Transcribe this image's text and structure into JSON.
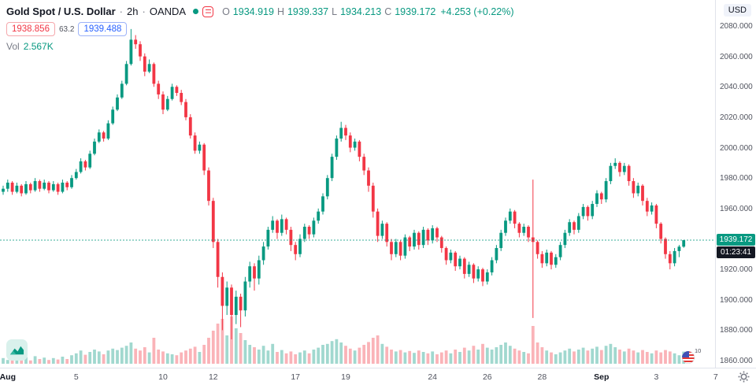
{
  "header": {
    "symbol_title": "Gold Spot / U.S. Dollar",
    "separator": "·",
    "interval": "2h",
    "exchange": "OANDA",
    "ohlc": [
      {
        "k": "O",
        "v": "1934.919"
      },
      {
        "k": "H",
        "v": "1939.337"
      },
      {
        "k": "L",
        "v": "1934.213"
      },
      {
        "k": "C",
        "v": "1939.172"
      }
    ],
    "change": "+4.253 (+0.22%)",
    "quote": {
      "sell": "1938.856",
      "spread": "63.2",
      "buy": "1939.488"
    },
    "volume_label": "Vol",
    "volume_value": "2.567K"
  },
  "price_axis": {
    "currency_button": "USD",
    "ticks": [
      "2080.000",
      "2060.000",
      "2040.000",
      "2020.000",
      "2000.000",
      "1980.000",
      "1960.000",
      "1940.000",
      "1920.000",
      "1900.000",
      "1880.000",
      "1860.000"
    ],
    "last_price": "1939.172",
    "countdown": "01:23:41"
  },
  "time_axis": {
    "ticks": [
      {
        "label": "Aug",
        "i": 1,
        "major": true
      },
      {
        "label": "5",
        "i": 16
      },
      {
        "label": "10",
        "i": 35
      },
      {
        "label": "12",
        "i": 46
      },
      {
        "label": "17",
        "i": 64
      },
      {
        "label": "19",
        "i": 75
      },
      {
        "label": "24",
        "i": 94
      },
      {
        "label": "26",
        "i": 106
      },
      {
        "label": "28",
        "i": 118
      },
      {
        "label": "Sep",
        "i": 131,
        "major": true
      },
      {
        "label": "3",
        "i": 143
      },
      {
        "label": "7",
        "i": 156
      }
    ]
  },
  "footer": {
    "flag_badge": "10"
  },
  "colors": {
    "up": "#089981",
    "down": "#f23645",
    "sell": "#f23645",
    "buy": "#2962ff",
    "badge_bg": "#089981",
    "countdown_bg": "#131722",
    "axis_text": "#50535e",
    "muted": "#787b86",
    "text": "#131722",
    "border": "#e0e3eb"
  },
  "chart_data": {
    "type": "candlestick",
    "title": "Gold Spot / U.S. Dollar, 2h, OANDA",
    "ylabel": "Price (USD)",
    "ylim": [
      1860,
      2080
    ],
    "y_tick_step": 20,
    "last_close": 1939.172,
    "candles": [
      [
        1971,
        1975,
        1969,
        1973
      ],
      [
        1973,
        1979,
        1971,
        1977
      ],
      [
        1977,
        1978,
        1969,
        1971
      ],
      [
        1971,
        1977,
        1970,
        1975
      ],
      [
        1975,
        1976,
        1968,
        1970
      ],
      [
        1970,
        1978,
        1969,
        1976
      ],
      [
        1976,
        1977,
        1970,
        1972
      ],
      [
        1972,
        1980,
        1971,
        1978
      ],
      [
        1978,
        1979,
        1971,
        1973
      ],
      [
        1973,
        1979,
        1972,
        1977
      ],
      [
        1977,
        1978,
        1970,
        1972
      ],
      [
        1972,
        1978,
        1971,
        1976
      ],
      [
        1976,
        1977,
        1969,
        1971
      ],
      [
        1971,
        1979,
        1970,
        1977
      ],
      [
        1977,
        1978,
        1972,
        1974
      ],
      [
        1974,
        1982,
        1973,
        1980
      ],
      [
        1980,
        1986,
        1979,
        1984
      ],
      [
        1984,
        1993,
        1983,
        1991
      ],
      [
        1991,
        1992,
        1985,
        1987
      ],
      [
        1987,
        1998,
        1986,
        1996
      ],
      [
        1996,
        2006,
        1995,
        2004
      ],
      [
        2004,
        2012,
        2003,
        2010
      ],
      [
        2010,
        2011,
        2004,
        2006
      ],
      [
        2006,
        2018,
        2005,
        2016
      ],
      [
        2016,
        2027,
        2015,
        2025
      ],
      [
        2025,
        2035,
        2024,
        2033
      ],
      [
        2033,
        2044,
        2032,
        2042
      ],
      [
        2042,
        2057,
        2041,
        2055
      ],
      [
        2055,
        2078,
        2054,
        2071
      ],
      [
        2071,
        2074,
        2065,
        2068
      ],
      [
        2068,
        2070,
        2057,
        2060
      ],
      [
        2060,
        2062,
        2047,
        2050
      ],
      [
        2050,
        2058,
        2049,
        2055
      ],
      [
        2055,
        2056,
        2040,
        2042
      ],
      [
        2042,
        2044,
        2032,
        2035
      ],
      [
        2035,
        2037,
        2022,
        2025
      ],
      [
        2025,
        2034,
        2024,
        2032
      ],
      [
        2032,
        2042,
        2031,
        2040
      ],
      [
        2040,
        2041,
        2034,
        2036
      ],
      [
        2036,
        2038,
        2028,
        2030
      ],
      [
        2030,
        2032,
        2018,
        2020
      ],
      [
        2020,
        2022,
        2006,
        2008
      ],
      [
        2008,
        2010,
        1996,
        1998
      ],
      [
        1998,
        2004,
        1996,
        2002
      ],
      [
        2002,
        2003,
        1982,
        1985
      ],
      [
        1985,
        1987,
        1962,
        1965
      ],
      [
        1965,
        1967,
        1934,
        1938
      ],
      [
        1938,
        1940,
        1908,
        1915
      ],
      [
        1915,
        1918,
        1880,
        1896
      ],
      [
        1896,
        1912,
        1890,
        1908
      ],
      [
        1908,
        1910,
        1874,
        1890
      ],
      [
        1890,
        1906,
        1884,
        1902
      ],
      [
        1902,
        1904,
        1882,
        1893
      ],
      [
        1893,
        1915,
        1889,
        1912
      ],
      [
        1912,
        1925,
        1908,
        1922
      ],
      [
        1922,
        1924,
        1906,
        1914
      ],
      [
        1914,
        1929,
        1910,
        1926
      ],
      [
        1926,
        1938,
        1923,
        1935
      ],
      [
        1935,
        1948,
        1933,
        1946
      ],
      [
        1946,
        1955,
        1944,
        1952
      ],
      [
        1952,
        1953,
        1940,
        1944
      ],
      [
        1944,
        1956,
        1942,
        1953
      ],
      [
        1953,
        1954,
        1943,
        1946
      ],
      [
        1946,
        1948,
        1932,
        1936
      ],
      [
        1936,
        1938,
        1926,
        1930
      ],
      [
        1930,
        1943,
        1928,
        1940
      ],
      [
        1940,
        1950,
        1938,
        1948
      ],
      [
        1948,
        1949,
        1940,
        1943
      ],
      [
        1943,
        1954,
        1941,
        1952
      ],
      [
        1952,
        1960,
        1950,
        1958
      ],
      [
        1958,
        1970,
        1956,
        1968
      ],
      [
        1968,
        1982,
        1966,
        1980
      ],
      [
        1980,
        1996,
        1978,
        1994
      ],
      [
        1994,
        2008,
        1992,
        2006
      ],
      [
        2006,
        2017,
        2004,
        2013
      ],
      [
        2013,
        2015,
        2005,
        2008
      ],
      [
        2008,
        2010,
        1997,
        2000
      ],
      [
        2000,
        2006,
        1998,
        2004
      ],
      [
        2004,
        2005,
        1991,
        1994
      ],
      [
        1994,
        1996,
        1982,
        1985
      ],
      [
        1985,
        1987,
        1971,
        1975
      ],
      [
        1975,
        1977,
        1954,
        1958
      ],
      [
        1958,
        1960,
        1938,
        1942
      ],
      [
        1942,
        1952,
        1940,
        1950
      ],
      [
        1950,
        1951,
        1935,
        1938
      ],
      [
        1938,
        1940,
        1926,
        1930
      ],
      [
        1930,
        1940,
        1928,
        1938
      ],
      [
        1938,
        1939,
        1926,
        1929
      ],
      [
        1929,
        1943,
        1927,
        1941
      ],
      [
        1941,
        1942,
        1932,
        1935
      ],
      [
        1935,
        1946,
        1933,
        1944
      ],
      [
        1944,
        1945,
        1933,
        1936
      ],
      [
        1936,
        1948,
        1934,
        1946
      ],
      [
        1946,
        1947,
        1936,
        1939
      ],
      [
        1939,
        1949,
        1937,
        1947
      ],
      [
        1947,
        1948,
        1938,
        1941
      ],
      [
        1941,
        1942,
        1931,
        1934
      ],
      [
        1934,
        1935,
        1923,
        1926
      ],
      [
        1926,
        1933,
        1924,
        1931
      ],
      [
        1931,
        1932,
        1919,
        1922
      ],
      [
        1922,
        1929,
        1920,
        1927
      ],
      [
        1927,
        1928,
        1914,
        1917
      ],
      [
        1917,
        1925,
        1915,
        1923
      ],
      [
        1923,
        1924,
        1911,
        1914
      ],
      [
        1914,
        1922,
        1912,
        1920
      ],
      [
        1920,
        1921,
        1909,
        1912
      ],
      [
        1912,
        1920,
        1910,
        1918
      ],
      [
        1918,
        1928,
        1916,
        1926
      ],
      [
        1926,
        1936,
        1924,
        1934
      ],
      [
        1934,
        1946,
        1932,
        1944
      ],
      [
        1944,
        1954,
        1942,
        1952
      ],
      [
        1952,
        1960,
        1950,
        1958
      ],
      [
        1958,
        1959,
        1947,
        1950
      ],
      [
        1950,
        1951,
        1941,
        1944
      ],
      [
        1944,
        1950,
        1942,
        1948
      ],
      [
        1948,
        1949,
        1938,
        1941
      ],
      [
        1941,
        1979,
        1888,
        1938
      ],
      [
        1938,
        1939,
        1927,
        1930
      ],
      [
        1930,
        1932,
        1921,
        1924
      ],
      [
        1924,
        1933,
        1922,
        1931
      ],
      [
        1931,
        1932,
        1920,
        1923
      ],
      [
        1923,
        1930,
        1921,
        1928
      ],
      [
        1928,
        1938,
        1926,
        1936
      ],
      [
        1936,
        1946,
        1934,
        1944
      ],
      [
        1944,
        1953,
        1942,
        1951
      ],
      [
        1951,
        1952,
        1943,
        1946
      ],
      [
        1946,
        1957,
        1944,
        1955
      ],
      [
        1955,
        1963,
        1953,
        1961
      ],
      [
        1961,
        1962,
        1952,
        1955
      ],
      [
        1955,
        1965,
        1953,
        1963
      ],
      [
        1963,
        1972,
        1961,
        1970
      ],
      [
        1970,
        1971,
        1963,
        1966
      ],
      [
        1966,
        1980,
        1964,
        1978
      ],
      [
        1978,
        1990,
        1976,
        1988
      ],
      [
        1988,
        1993,
        1986,
        1990
      ],
      [
        1990,
        1991,
        1981,
        1984
      ],
      [
        1984,
        1990,
        1982,
        1988
      ],
      [
        1988,
        1989,
        1975,
        1978
      ],
      [
        1978,
        1980,
        1967,
        1970
      ],
      [
        1970,
        1977,
        1968,
        1975
      ],
      [
        1975,
        1976,
        1962,
        1965
      ],
      [
        1965,
        1967,
        1955,
        1958
      ],
      [
        1958,
        1964,
        1956,
        1962
      ],
      [
        1962,
        1963,
        1947,
        1950
      ],
      [
        1950,
        1951,
        1937,
        1940
      ],
      [
        1940,
        1941,
        1927,
        1930
      ],
      [
        1930,
        1932,
        1920,
        1924
      ],
      [
        1924,
        1934,
        1922,
        1932
      ],
      [
        1932,
        1936,
        1928,
        1934.9
      ],
      [
        1934.9,
        1939.3,
        1934.2,
        1939.2
      ]
    ],
    "volumes": [
      1.2,
      0.8,
      1.5,
      0.9,
      1.1,
      1.4,
      0.7,
      1.6,
      1.0,
      1.3,
      0.8,
      1.2,
      0.9,
      1.5,
      1.0,
      1.8,
      2.2,
      2.8,
      1.9,
      2.5,
      3.0,
      2.6,
      2.0,
      2.8,
      3.2,
      2.9,
      3.4,
      3.8,
      4.5,
      3.2,
      2.8,
      3.5,
      2.4,
      5.5,
      3.0,
      2.6,
      2.2,
      2.0,
      1.8,
      2.4,
      2.8,
      3.2,
      3.6,
      2.5,
      4.0,
      5.5,
      7.0,
      8.5,
      9.5,
      6.0,
      10.0,
      7.5,
      6.5,
      5.0,
      4.0,
      3.5,
      3.0,
      3.8,
      2.8,
      4.2,
      2.5,
      2.9,
      2.2,
      2.6,
      2.0,
      2.4,
      2.8,
      2.2,
      3.0,
      3.4,
      4.0,
      4.2,
      4.8,
      5.2,
      4.5,
      3.8,
      3.2,
      2.8,
      3.4,
      4.0,
      4.6,
      5.5,
      6.0,
      4.2,
      3.6,
      3.0,
      2.6,
      2.9,
      2.4,
      2.7,
      2.3,
      2.8,
      2.5,
      2.2,
      2.6,
      2.0,
      2.4,
      2.8,
      2.2,
      3.0,
      2.5,
      3.4,
      2.8,
      3.8,
      3.0,
      4.2,
      3.4,
      3.0,
      3.5,
      4.0,
      4.5,
      3.8,
      3.2,
      2.8,
      2.5,
      2.2,
      8.0,
      4.5,
      3.5,
      2.8,
      2.4,
      2.0,
      2.4,
      2.8,
      3.2,
      2.6,
      3.0,
      3.4,
      2.8,
      3.2,
      3.6,
      2.9,
      3.8,
      4.2,
      3.5,
      3.0,
      2.6,
      3.2,
      2.8,
      2.4,
      2.9,
      2.5,
      2.2,
      2.8,
      2.4,
      2.9,
      2.6,
      2.2,
      1.8,
      2.567
    ]
  }
}
